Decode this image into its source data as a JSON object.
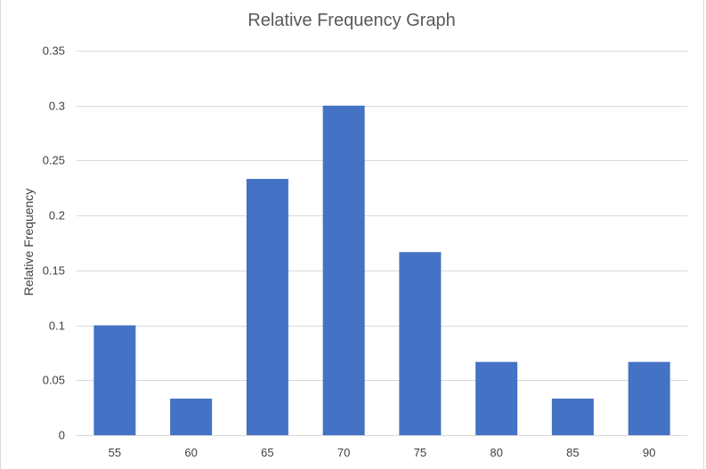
{
  "chart_data": {
    "type": "bar",
    "title": "Relative Frequency Graph",
    "xlabel": "",
    "ylabel": "Relative Frequency",
    "categories": [
      "55",
      "60",
      "65",
      "70",
      "75",
      "80",
      "85",
      "90"
    ],
    "values": [
      0.1,
      0.0333,
      0.2333,
      0.3,
      0.1667,
      0.0667,
      0.0333,
      0.0667
    ],
    "y_ticks": [
      "0",
      "0.05",
      "0.1",
      "0.15",
      "0.2",
      "0.25",
      "0.3",
      "0.35"
    ],
    "ylim": [
      0,
      0.35
    ],
    "grid": true,
    "legend": "none",
    "bar_color": "#4472C4",
    "gridline_color": "#D9D9D9"
  }
}
